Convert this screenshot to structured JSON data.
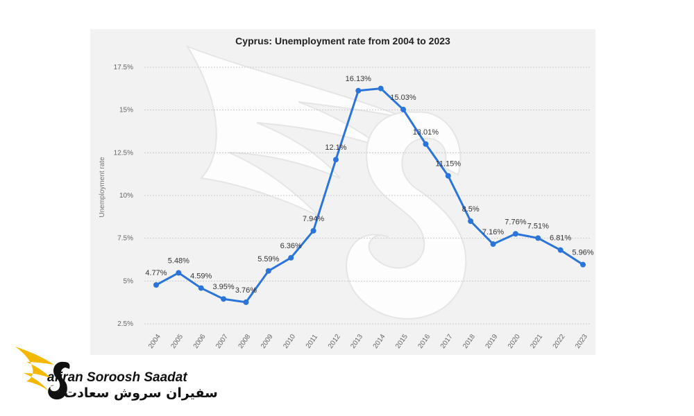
{
  "chart_data": {
    "type": "line",
    "title": "Cyprus: Unemployment rate from 2004 to 2023",
    "ylabel": "Unemployment rate",
    "xlabel": "",
    "ylim": [
      2.5,
      17.5
    ],
    "y_ticks": [
      2.5,
      5,
      7.5,
      10,
      12.5,
      15,
      17.5
    ],
    "y_tick_labels": [
      "2.5%",
      "5%",
      "7.5%",
      "10%",
      "12.5%",
      "15%",
      "17.5%"
    ],
    "grid": true,
    "categories": [
      "2004",
      "2005",
      "2006",
      "2007",
      "2008",
      "2009",
      "2010",
      "2011",
      "2012",
      "2013",
      "2014",
      "2015",
      "2016",
      "2017",
      "2018",
      "2019",
      "2020",
      "2021",
      "2022",
      "2023"
    ],
    "series": [
      {
        "color": "#2b74d9",
        "values": [
          4.77,
          5.48,
          4.59,
          3.95,
          3.76,
          5.59,
          6.36,
          7.94,
          12.1,
          16.13,
          16.26,
          15.03,
          13.01,
          11.15,
          8.5,
          7.16,
          7.76,
          7.51,
          6.81,
          5.96
        ],
        "labels": [
          "4.77%",
          "5.48%",
          "4.59%",
          "3.95%",
          "3.76%",
          "5.59%",
          "6.36%",
          "7.94%",
          "12.1%",
          "16.13%",
          "",
          "15.03%",
          "13.01%",
          "11.15%",
          "8.5%",
          "7.16%",
          "7.76%",
          "7.51%",
          "6.81%",
          "5.96%"
        ]
      }
    ]
  },
  "watermark": {
    "icon": "swan-watermark-icon",
    "color": "#ffffff"
  },
  "logo": {
    "name_en": "afiran Soroosh Saadat",
    "name_fa": "سفیران سروش سعادت",
    "accent_color": "#f5b800"
  }
}
